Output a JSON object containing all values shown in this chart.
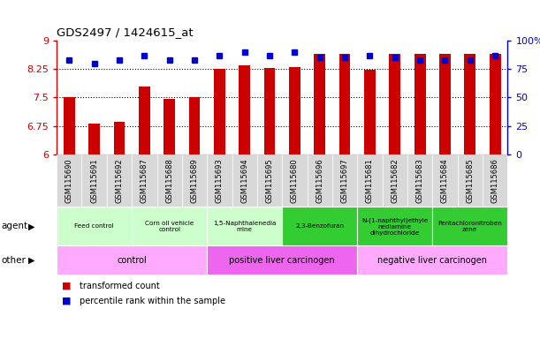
{
  "title": "GDS2497 / 1424615_at",
  "samples": [
    "GSM115690",
    "GSM115691",
    "GSM115692",
    "GSM115687",
    "GSM115688",
    "GSM115689",
    "GSM115693",
    "GSM115694",
    "GSM115695",
    "GSM115680",
    "GSM115696",
    "GSM115697",
    "GSM115681",
    "GSM115682",
    "GSM115683",
    "GSM115684",
    "GSM115685",
    "GSM115686"
  ],
  "transformed_count": [
    7.5,
    6.8,
    6.85,
    7.8,
    7.47,
    7.5,
    8.25,
    8.35,
    8.27,
    8.3,
    8.65,
    8.65,
    8.23,
    8.65,
    8.65,
    8.65,
    8.65,
    8.65
  ],
  "percentile_rank": [
    83,
    80,
    83,
    87,
    83,
    83,
    87,
    90,
    87,
    90,
    85,
    85,
    87,
    85,
    83,
    83,
    83,
    87
  ],
  "ylim_left": [
    6,
    9
  ],
  "ylim_right": [
    0,
    100
  ],
  "yticks_left": [
    6,
    6.75,
    7.5,
    8.25,
    9
  ],
  "ytick_labels_left": [
    "6",
    "6.75",
    "7.5",
    "8.25",
    "9"
  ],
  "yticks_right": [
    0,
    25,
    50,
    75,
    100
  ],
  "ytick_labels_right": [
    "0",
    "25",
    "50",
    "75",
    "100%"
  ],
  "bar_color": "#cc0000",
  "dot_color": "#0000cc",
  "agent_groups": [
    {
      "label": "Feed control",
      "start": 0,
      "end": 3,
      "color": "#ccffcc"
    },
    {
      "label": "Corn oil vehicle\ncontrol",
      "start": 3,
      "end": 6,
      "color": "#ccffcc"
    },
    {
      "label": "1,5-Naphthalenedia\nmine",
      "start": 6,
      "end": 9,
      "color": "#ccffcc"
    },
    {
      "label": "2,3-Benzofuran",
      "start": 9,
      "end": 12,
      "color": "#33cc33"
    },
    {
      "label": "N-(1-naphthyl)ethyle\nnediamine\ndihydrochloride",
      "start": 12,
      "end": 15,
      "color": "#33cc33"
    },
    {
      "label": "Pentachloronitroben\nzene",
      "start": 15,
      "end": 18,
      "color": "#33cc33"
    }
  ],
  "other_groups": [
    {
      "label": "control",
      "start": 0,
      "end": 6,
      "color": "#ffaaff"
    },
    {
      "label": "positive liver carcinogen",
      "start": 6,
      "end": 12,
      "color": "#ee66ee"
    },
    {
      "label": "negative liver carcinogen",
      "start": 12,
      "end": 18,
      "color": "#ffaaff"
    }
  ],
  "legend_red": "transformed count",
  "legend_blue": "percentile rank within the sample",
  "agent_label": "agent",
  "other_label": "other",
  "xlabel_bg": "#dddddd"
}
